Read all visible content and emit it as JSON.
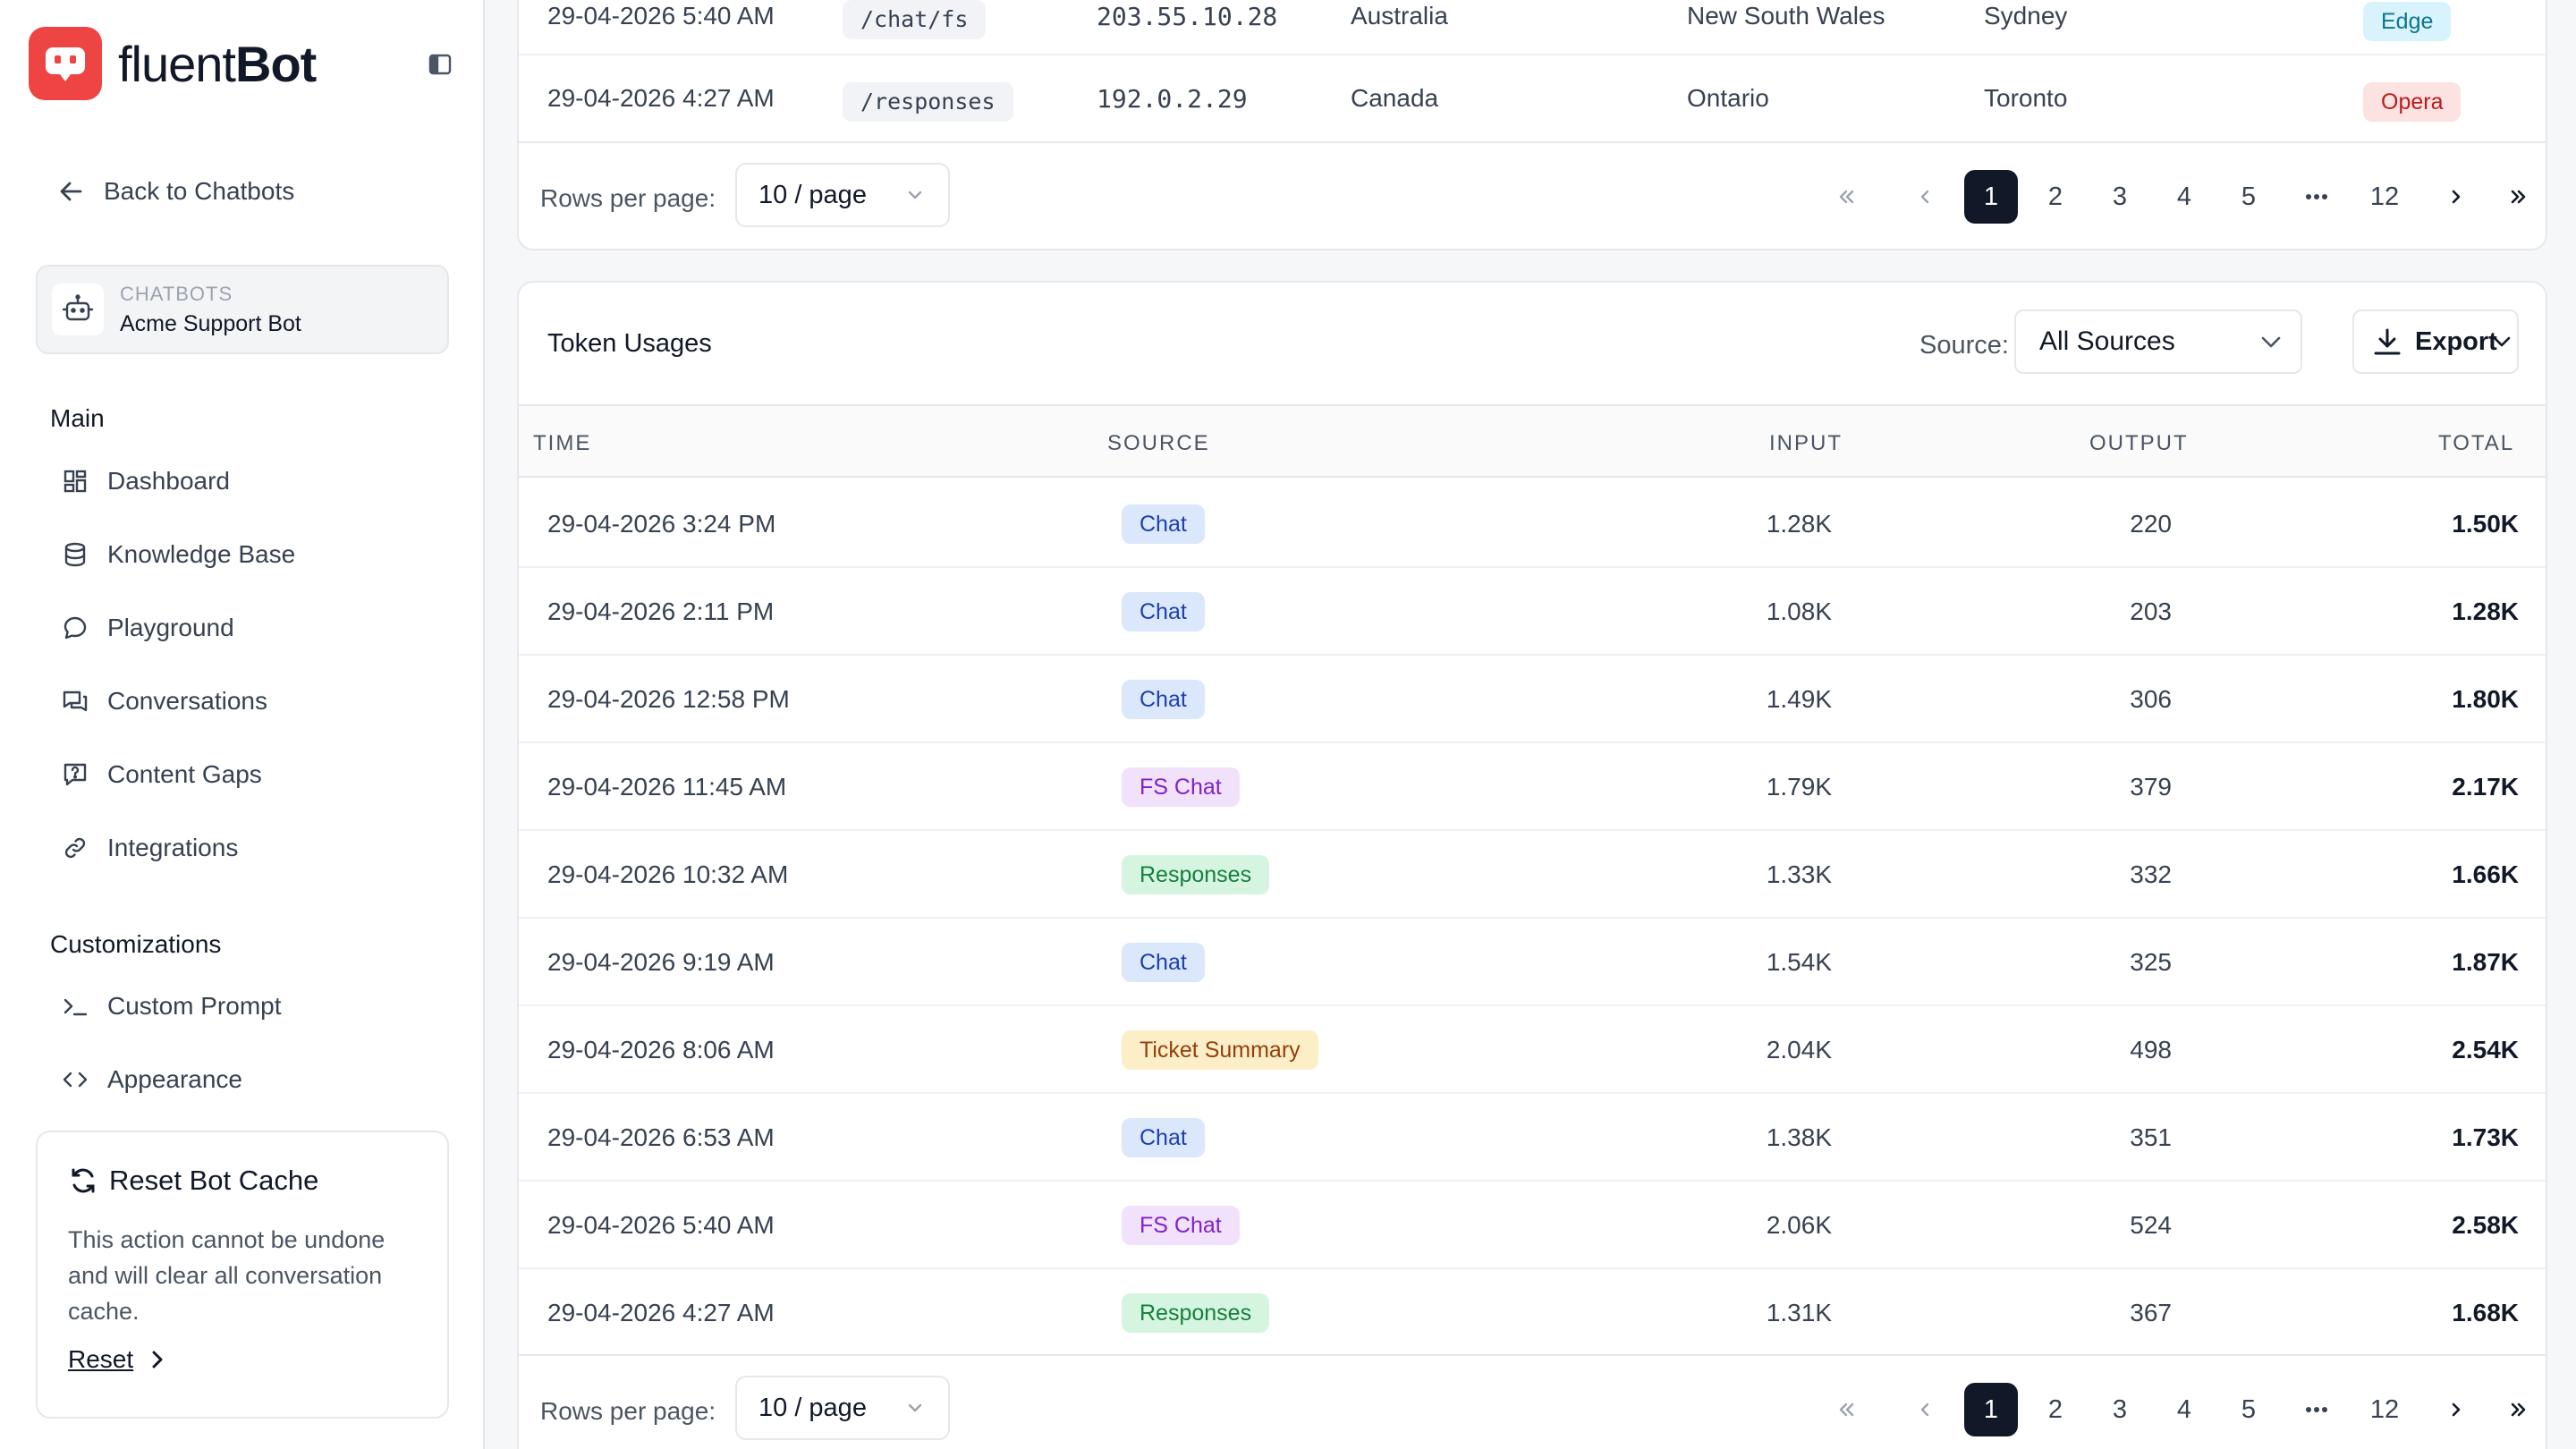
{
  "app": {
    "logo_regular": "fluent",
    "logo_bold": "Bot"
  },
  "sidebar": {
    "back_label": "Back to Chatbots",
    "bot_card": {
      "kicker": "CHATBOTS",
      "name": "Acme Support Bot"
    },
    "sections": {
      "main": "Main",
      "customizations": "Customizations"
    },
    "main_items": [
      {
        "label": "Dashboard",
        "icon": "dashboard-icon"
      },
      {
        "label": "Knowledge Base",
        "icon": "database-icon"
      },
      {
        "label": "Playground",
        "icon": "chat-bubble-icon"
      },
      {
        "label": "Conversations",
        "icon": "conversations-icon"
      },
      {
        "label": "Content Gaps",
        "icon": "help-box-icon"
      },
      {
        "label": "Integrations",
        "icon": "link-icon"
      }
    ],
    "custom_items": [
      {
        "label": "Custom Prompt",
        "icon": "terminal-icon"
      },
      {
        "label": "Appearance",
        "icon": "code-icon"
      }
    ],
    "reset_card": {
      "title": "Reset Bot Cache",
      "description": "This action cannot be undone and will clear all conversation cache.",
      "link": "Reset"
    }
  },
  "requests_table": {
    "rows": [
      {
        "time": "29-04-2026 5:40 AM",
        "endpoint": "/chat/fs",
        "ip": "203.55.10.28",
        "country": "Australia",
        "region": "New South Wales",
        "city": "Sydney",
        "browser": "Edge"
      },
      {
        "time": "29-04-2026 4:27 AM",
        "endpoint": "/responses",
        "ip": "192.0.2.29",
        "country": "Canada",
        "region": "Ontario",
        "city": "Toronto",
        "browser": "Opera"
      }
    ],
    "rows_per_page_label": "Rows per page:",
    "rows_per_page_value": "10 / page",
    "pages": [
      "1",
      "2",
      "3",
      "4",
      "5",
      "12"
    ],
    "current_page": "1"
  },
  "token_usages": {
    "title": "Token Usages",
    "source_label": "Source:",
    "source_value": "All Sources",
    "export_label": "Export",
    "columns": {
      "time": "TIME",
      "source": "SOURCE",
      "input": "INPUT",
      "output": "OUTPUT",
      "total": "TOTAL"
    },
    "rows": [
      {
        "time": "29-04-2026 3:24 PM",
        "source": "Chat",
        "input": "1.28K",
        "output": "220",
        "total": "1.50K"
      },
      {
        "time": "29-04-2026 2:11 PM",
        "source": "Chat",
        "input": "1.08K",
        "output": "203",
        "total": "1.28K"
      },
      {
        "time": "29-04-2026 12:58 PM",
        "source": "Chat",
        "input": "1.49K",
        "output": "306",
        "total": "1.80K"
      },
      {
        "time": "29-04-2026 11:45 AM",
        "source": "FS Chat",
        "input": "1.79K",
        "output": "379",
        "total": "2.17K"
      },
      {
        "time": "29-04-2026 10:32 AM",
        "source": "Responses",
        "input": "1.33K",
        "output": "332",
        "total": "1.66K"
      },
      {
        "time": "29-04-2026 9:19 AM",
        "source": "Chat",
        "input": "1.54K",
        "output": "325",
        "total": "1.87K"
      },
      {
        "time": "29-04-2026 8:06 AM",
        "source": "Ticket Summary",
        "input": "2.04K",
        "output": "498",
        "total": "2.54K"
      },
      {
        "time": "29-04-2026 6:53 AM",
        "source": "Chat",
        "input": "1.38K",
        "output": "351",
        "total": "1.73K"
      },
      {
        "time": "29-04-2026 5:40 AM",
        "source": "FS Chat",
        "input": "2.06K",
        "output": "524",
        "total": "2.58K"
      },
      {
        "time": "29-04-2026 4:27 AM",
        "source": "Responses",
        "input": "1.31K",
        "output": "367",
        "total": "1.68K"
      }
    ],
    "rows_per_page_label": "Rows per page:",
    "rows_per_page_value": "10 / page",
    "pages": [
      "1",
      "2",
      "3",
      "4",
      "5",
      "12"
    ],
    "current_page": "1"
  },
  "colors": {
    "brand": "#ef4444",
    "chip_chat": "#dbe7fb",
    "chip_fs_chat": "#f1e1fb",
    "chip_responses": "#d6f5e1",
    "chip_ticket_summary": "#fcefc7",
    "chip_edge": "#d8f3fb",
    "chip_opera": "#fde2e2",
    "active_page": "#111827"
  }
}
